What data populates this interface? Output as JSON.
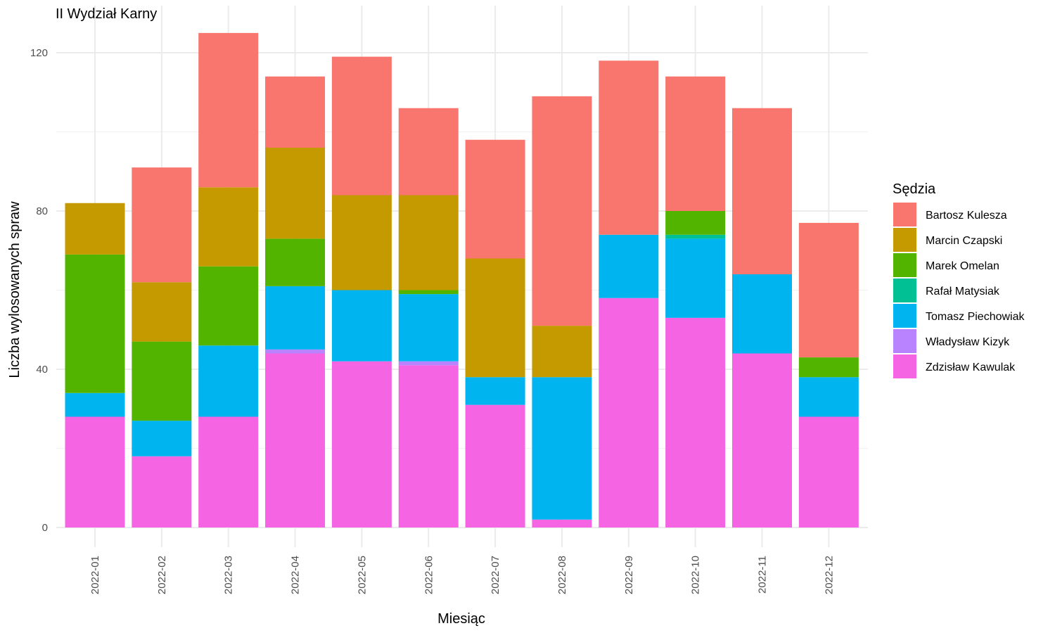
{
  "chart_data": {
    "type": "bar",
    "stacked": true,
    "title": "II Wydział Karny",
    "xlabel": "Miesiąc",
    "ylabel": "Liczba wylosowanych spraw",
    "ylim": [
      0,
      130
    ],
    "yticks": [
      0,
      40,
      80,
      120
    ],
    "grid": true,
    "legend_title": "Sędzia",
    "legend_position": "right",
    "categories": [
      "2022-01",
      "2022-02",
      "2022-03",
      "2022-04",
      "2022-05",
      "2022-06",
      "2022-07",
      "2022-08",
      "2022-09",
      "2022-10",
      "2022-11",
      "2022-12"
    ],
    "series": [
      {
        "name": "Zdzisław Kawulak",
        "color": "#F564E3",
        "values": [
          28,
          18,
          28,
          44,
          42,
          41,
          31,
          2,
          58,
          53,
          44,
          28
        ]
      },
      {
        "name": "Władysław Kizyk",
        "color": "#B983FF",
        "values": [
          0,
          0,
          0,
          1,
          0,
          1,
          0,
          0,
          0,
          0,
          0,
          0
        ]
      },
      {
        "name": "Tomasz Piechowiak",
        "color": "#00B4EF",
        "values": [
          6,
          9,
          18,
          16,
          18,
          17,
          7,
          36,
          16,
          20,
          20,
          10
        ]
      },
      {
        "name": "Rafał Matysiak",
        "color": "#00C094",
        "values": [
          0,
          0,
          0,
          0,
          0,
          0,
          0,
          0,
          0,
          1,
          0,
          0
        ]
      },
      {
        "name": "Marek Omelan",
        "color": "#53B400",
        "values": [
          35,
          20,
          20,
          12,
          0,
          1,
          0,
          0,
          0,
          6,
          0,
          5
        ]
      },
      {
        "name": "Marcin Czapski",
        "color": "#C49A00",
        "values": [
          13,
          15,
          20,
          23,
          24,
          24,
          30,
          13,
          0,
          0,
          0,
          0
        ]
      },
      {
        "name": "Bartosz Kulesza",
        "color": "#F8766D",
        "values": [
          0,
          29,
          39,
          18,
          35,
          22,
          30,
          58,
          44,
          34,
          42,
          34
        ]
      }
    ],
    "legend_order": [
      "Bartosz Kulesza",
      "Marcin Czapski",
      "Marek Omelan",
      "Rafał Matysiak",
      "Tomasz Piechowiak",
      "Władysław Kizyk",
      "Zdzisław Kawulak"
    ]
  }
}
